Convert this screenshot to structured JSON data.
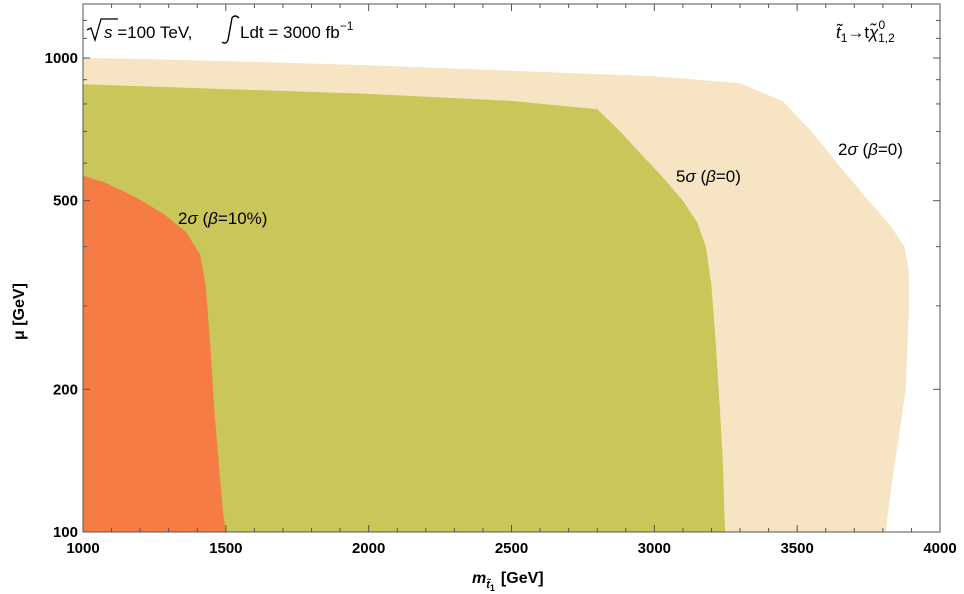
{
  "chart_data": {
    "type": "area",
    "x_scale": "linear",
    "y_scale": "log",
    "xlim": [
      1000,
      4000
    ],
    "ylim": [
      100,
      1300
    ],
    "x_ticks": [
      1000,
      1500,
      2000,
      2500,
      3000,
      3500,
      4000
    ],
    "y_ticks": [
      100,
      200,
      500,
      1000
    ],
    "x_tick_labels": [
      "1000",
      "1500",
      "2000",
      "2500",
      "3000",
      "3500",
      "4000"
    ],
    "y_tick_labels": [
      "100",
      "200",
      "500",
      "1000"
    ],
    "xlabel": {
      "main": "m",
      "sub": "t̃",
      "subsub": "1",
      "unit": "[GeV]"
    },
    "ylabel": "μ [GeV]",
    "grid": false,
    "legend": "none",
    "annotation_left": {
      "sqrt_arg": "s",
      "energy": " =100 TeV, ",
      "lumi_int": "Ldt = 3000 fb",
      "lumi_exp": "−1"
    },
    "annotation_right": {
      "lhs": "t̃",
      "lhs_sub": "1",
      "arrow": "→t",
      "rhs": "χ̃",
      "rhs_sup": "0",
      "rhs_sub": "1,2"
    },
    "series": [
      {
        "label_num": "2",
        "label_greek": "σ",
        "label_rest": " (",
        "label_beta": "β",
        "label_cond": "=0)",
        "color": "#f6e4c3",
        "boundary": [
          [
            1000,
            1000
          ],
          [
            1200,
            995
          ],
          [
            1500,
            985
          ],
          [
            2000,
            965
          ],
          [
            2500,
            940
          ],
          [
            3000,
            915
          ],
          [
            3300,
            885
          ],
          [
            3450,
            810
          ],
          [
            3550,
            700
          ],
          [
            3650,
            590
          ],
          [
            3750,
            500
          ],
          [
            3830,
            440
          ],
          [
            3875,
            400
          ],
          [
            3890,
            360
          ],
          [
            3892,
            300
          ],
          [
            3880,
            200
          ],
          [
            3850,
            150
          ],
          [
            3830,
            125
          ],
          [
            3810,
            100
          ]
        ]
      },
      {
        "label_num": "5",
        "label_greek": "σ",
        "label_rest": " (",
        "label_beta": "β",
        "label_cond": "=0)",
        "color": "#c9c65a",
        "boundary": [
          [
            1000,
            880
          ],
          [
            1500,
            860
          ],
          [
            2000,
            840
          ],
          [
            2500,
            812
          ],
          [
            2800,
            780
          ],
          [
            2880,
            700
          ],
          [
            2950,
            630
          ],
          [
            3030,
            560
          ],
          [
            3100,
            500
          ],
          [
            3150,
            450
          ],
          [
            3180,
            400
          ],
          [
            3200,
            330
          ],
          [
            3215,
            250
          ],
          [
            3230,
            180
          ],
          [
            3240,
            140
          ],
          [
            3245,
            110
          ],
          [
            3248,
            100
          ]
        ]
      },
      {
        "label_num": "2",
        "label_greek": "σ",
        "label_rest": " (",
        "label_beta": "β",
        "label_cond": "=10%)",
        "color": "#f67c45",
        "boundary": [
          [
            1000,
            565
          ],
          [
            1080,
            545
          ],
          [
            1180,
            510
          ],
          [
            1280,
            470
          ],
          [
            1360,
            430
          ],
          [
            1410,
            385
          ],
          [
            1430,
            330
          ],
          [
            1445,
            250
          ],
          [
            1460,
            180
          ],
          [
            1475,
            140
          ],
          [
            1490,
            110
          ],
          [
            1500,
            100
          ]
        ]
      }
    ]
  }
}
